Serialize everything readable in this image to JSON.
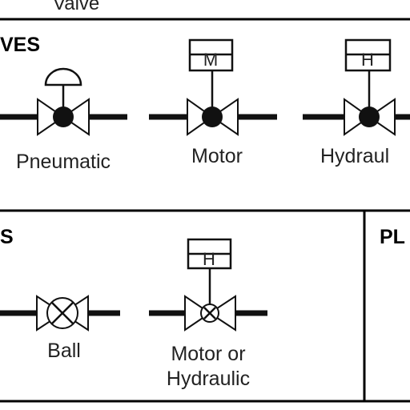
{
  "header": {
    "top_caption": "Valve"
  },
  "sections": {
    "upper": {
      "heading": "VES",
      "items": [
        {
          "label": "Pneumatic",
          "actuator": "diaphragm-icon"
        },
        {
          "label": "Motor",
          "actuator": "motor-box-icon",
          "box_letter": "M"
        },
        {
          "label": "Hydraul",
          "actuator": "hydraulic-box-icon",
          "box_letter": "H"
        }
      ]
    },
    "lower_left": {
      "heading": "S",
      "items": [
        {
          "label": "Ball",
          "actuator": "none"
        },
        {
          "label_line1": "Motor or",
          "label_line2": "Hydraulic",
          "actuator": "hydraulic-box-icon",
          "box_letter": "H"
        }
      ]
    },
    "lower_right": {
      "heading": "PL"
    }
  },
  "colors": {
    "ink": "#111111",
    "background": "#ffffff"
  }
}
